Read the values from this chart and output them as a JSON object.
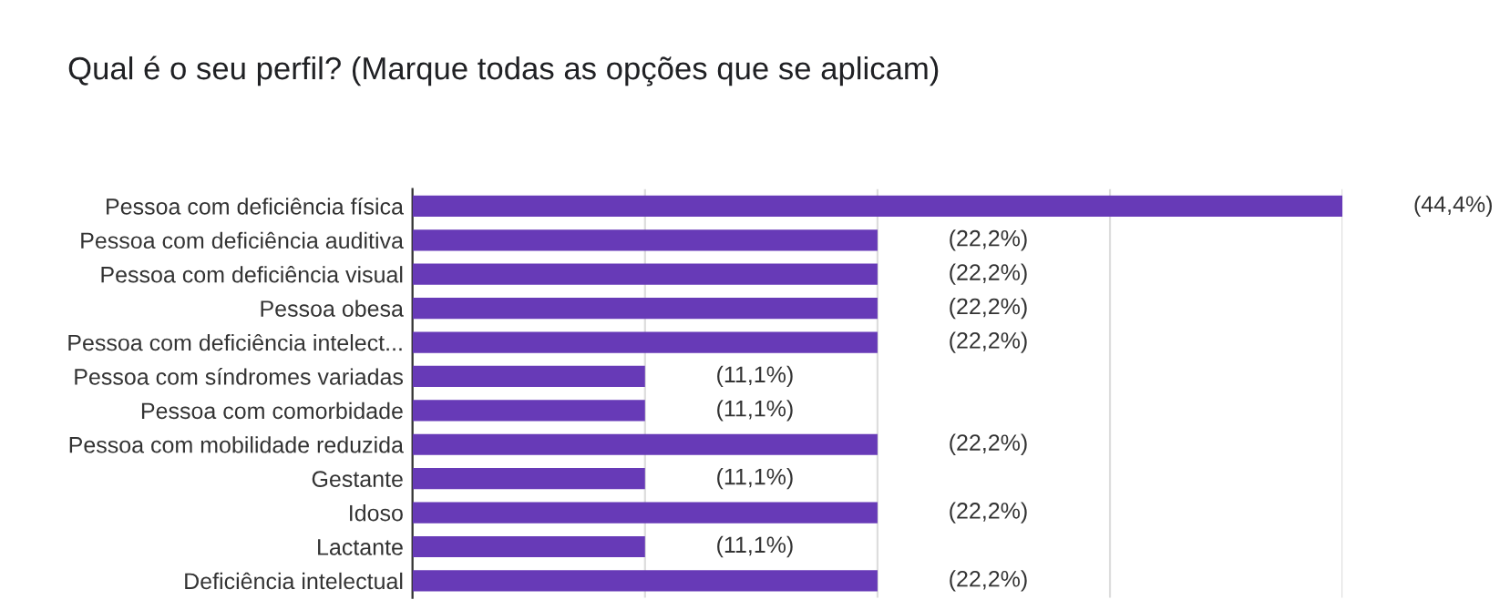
{
  "chart_data": {
    "type": "bar",
    "orientation": "horizontal",
    "title": "Qual é o seu perfil? (Marque todas as opções que se aplicam)",
    "categories": [
      "Pessoa com deficiência física",
      "Pessoa com deficiência auditiva",
      "Pessoa com deficiência visual",
      "Pessoa obesa",
      "Pessoa com deficiência intelect...",
      "Pessoa com síndromes variadas",
      "Pessoa com comorbidade",
      "Pessoa com mobilidade reduzida",
      "Gestante",
      "Idoso",
      "Lactante",
      "Deficiência intelectual"
    ],
    "values": [
      44.4,
      22.2,
      22.2,
      22.2,
      22.2,
      11.1,
      11.1,
      22.2,
      11.1,
      22.2,
      11.1,
      22.2
    ],
    "value_labels": [
      "(44,4%)",
      "(22,2%)",
      "(22,2%)",
      "(22,2%)",
      "(22,2%)",
      "(11,1%)",
      "(11,1%)",
      "(22,2%)",
      "(11,1%)",
      "(22,2%)",
      "(11,1%)",
      "(22,2%)"
    ],
    "color": "#673ab7",
    "xlim": [
      0,
      44.4
    ],
    "xticks": [
      {
        "value": 0,
        "label": null
      },
      {
        "value": 11.1,
        "label": null
      },
      {
        "value": 22.2,
        "label": null
      },
      {
        "value": 33.3,
        "label": null
      },
      {
        "value": 44.4,
        "label": null
      }
    ],
    "grid": "x",
    "tick_labels": "y"
  }
}
